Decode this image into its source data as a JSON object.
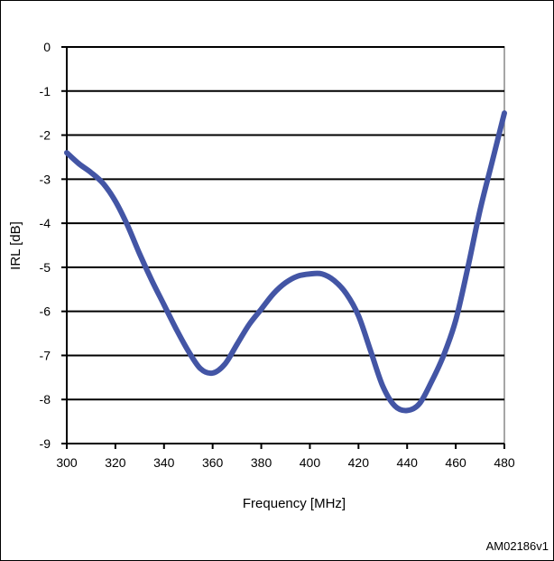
{
  "chart_data": {
    "type": "line",
    "title": "",
    "xlabel": "Frequency  [MHz]",
    "ylabel": "IRL [dB]",
    "xlim": [
      300,
      480
    ],
    "ylim": [
      -9,
      0
    ],
    "x_ticks": [
      300,
      320,
      340,
      360,
      380,
      400,
      420,
      440,
      460,
      480
    ],
    "y_ticks": [
      0,
      -1,
      -2,
      -3,
      -4,
      -5,
      -6,
      -7,
      -8,
      -9
    ],
    "grid": "horizontal",
    "legend": "none",
    "series_color": "#4355a5",
    "series": [
      {
        "x": [
          300,
          305,
          310,
          315,
          320,
          325,
          330,
          335,
          340,
          345,
          350,
          355,
          360,
          365,
          370,
          375,
          380,
          385,
          390,
          395,
          400,
          405,
          410,
          415,
          420,
          425,
          430,
          435,
          440,
          445,
          450,
          455,
          460,
          465,
          470,
          475,
          480
        ],
        "y": [
          -2.4,
          -2.65,
          -2.85,
          -3.1,
          -3.5,
          -4.05,
          -4.7,
          -5.3,
          -5.85,
          -6.4,
          -6.9,
          -7.3,
          -7.4,
          -7.2,
          -6.75,
          -6.3,
          -5.95,
          -5.6,
          -5.35,
          -5.2,
          -5.15,
          -5.15,
          -5.3,
          -5.6,
          -6.1,
          -6.9,
          -7.7,
          -8.15,
          -8.25,
          -8.1,
          -7.6,
          -7.0,
          -6.2,
          -5.0,
          -3.7,
          -2.6,
          -1.5
        ]
      }
    ],
    "annotation": "AM02186v1"
  }
}
